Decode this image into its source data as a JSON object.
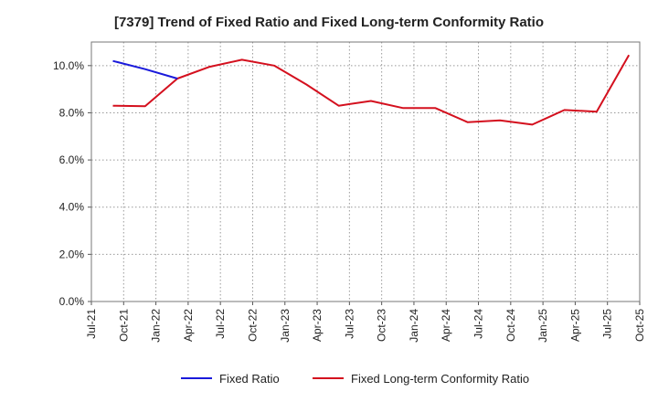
{
  "chart_data": {
    "type": "line",
    "title": "[7379]  Trend of Fixed Ratio and Fixed Long-term Conformity Ratio",
    "xlabel": "",
    "ylabel": "",
    "categories": [
      "Jul-21",
      "Oct-21",
      "Jan-22",
      "Apr-22",
      "Jul-22",
      "Oct-22",
      "Jan-23",
      "Apr-23",
      "Jul-23",
      "Oct-23",
      "Jan-24",
      "Apr-24",
      "Jul-24",
      "Oct-24",
      "Jan-25",
      "Apr-25",
      "Jul-25",
      "Oct-25"
    ],
    "y_ticks": [
      "0.0%",
      "2.0%",
      "4.0%",
      "6.0%",
      "8.0%",
      "10.0%"
    ],
    "ylim": [
      0,
      11
    ],
    "grid": true,
    "legend_position": "bottom",
    "series": [
      {
        "name": "Fixed Ratio",
        "color": "#1a1adb",
        "points": [
          {
            "x": "Sep-21",
            "y": 10.2
          },
          {
            "x": "Dec-21",
            "y": 9.85
          },
          {
            "x": "Mar-22",
            "y": 9.45
          }
        ]
      },
      {
        "name": "Fixed Long-term Conformity Ratio",
        "color": "#d4101e",
        "points": [
          {
            "x": "Sep-21",
            "y": 8.3
          },
          {
            "x": "Dec-21",
            "y": 8.28
          },
          {
            "x": "Mar-22",
            "y": 9.45
          },
          {
            "x": "Jun-22",
            "y": 9.95
          },
          {
            "x": "Sep-22",
            "y": 10.25
          },
          {
            "x": "Dec-22",
            "y": 10.0
          },
          {
            "x": "Mar-23",
            "y": 9.2
          },
          {
            "x": "Jun-23",
            "y": 8.3
          },
          {
            "x": "Sep-23",
            "y": 8.5
          },
          {
            "x": "Dec-23",
            "y": 8.2
          },
          {
            "x": "Mar-24",
            "y": 8.2
          },
          {
            "x": "Jun-24",
            "y": 7.6
          },
          {
            "x": "Sep-24",
            "y": 7.68
          },
          {
            "x": "Dec-24",
            "y": 7.5
          },
          {
            "x": "Mar-25",
            "y": 8.12
          },
          {
            "x": "Jun-25",
            "y": 8.05
          },
          {
            "x": "Sep-25",
            "y": 10.45
          }
        ]
      }
    ]
  }
}
